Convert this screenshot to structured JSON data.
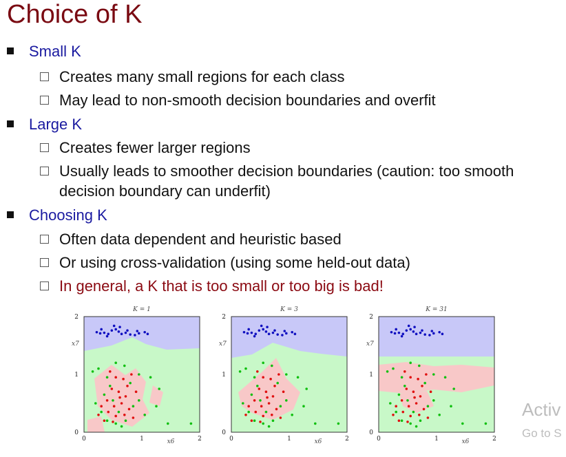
{
  "title": "Choice of K",
  "bullets": [
    {
      "label": "Small K",
      "items": [
        "Creates many small regions for each class",
        "May lead to non-smooth decision boundaries and overfit"
      ]
    },
    {
      "label": "Large K",
      "items": [
        "Creates fewer larger regions",
        "Usually leads to smoother decision boundaries (caution: too smooth",
        "decision boundary can underfit)"
      ]
    },
    {
      "label": "Choosing K",
      "items": [
        "Often data dependent and heuristic based",
        "Or using cross-validation (using some held-out data)",
        "In general, a K that is too small or too big is bad!"
      ]
    }
  ],
  "colors": {
    "title": "#7a0a12",
    "bullet": "#1a1aa0",
    "emphasis": "#8b0a12",
    "class_blue": "#c8c8f8",
    "class_green": "#c8f8c8",
    "class_red": "#f8c8c8"
  },
  "plots": [
    {
      "k_label": "K = 1"
    },
    {
      "k_label": "K = 3"
    },
    {
      "k_label": "K = 31"
    }
  ],
  "axis": {
    "xlabel": "x6",
    "ylabel": "x7",
    "ticks": [
      "0",
      "1",
      "2"
    ]
  },
  "watermark": {
    "line1": "Activ",
    "line2": "Go to S"
  },
  "chart_data": {
    "type": "scatter",
    "xlim": [
      0,
      2
    ],
    "ylim": [
      0,
      2
    ],
    "xlabel": "x6",
    "ylabel": "x7",
    "series": [
      {
        "name": "",
        "color": "#1010c0",
        "points": [
          [
            0.22,
            1.73
          ],
          [
            0.28,
            1.71
          ],
          [
            0.35,
            1.72
          ],
          [
            0.42,
            1.7
          ],
          [
            0.48,
            1.76
          ],
          [
            0.55,
            1.78
          ],
          [
            0.6,
            1.74
          ],
          [
            0.65,
            1.7
          ],
          [
            0.72,
            1.72
          ],
          [
            0.8,
            1.69
          ],
          [
            0.88,
            1.68
          ],
          [
            0.95,
            1.71
          ],
          [
            1.05,
            1.73
          ],
          [
            0.3,
            1.78
          ],
          [
            0.52,
            1.84
          ],
          [
            0.62,
            1.82
          ],
          [
            0.75,
            1.76
          ],
          [
            0.4,
            1.66
          ],
          [
            0.92,
            1.75
          ],
          [
            1.1,
            1.7
          ]
        ]
      },
      {
        "name": "",
        "color": "#10c010",
        "points": [
          [
            0.15,
            1.05
          ],
          [
            0.25,
            1.1
          ],
          [
            0.4,
            0.95
          ],
          [
            0.55,
            1.2
          ],
          [
            0.7,
            1.15
          ],
          [
            0.8,
            0.85
          ],
          [
            0.95,
            1.0
          ],
          [
            1.15,
            0.95
          ],
          [
            1.3,
            0.75
          ],
          [
            0.35,
            0.65
          ],
          [
            0.5,
            0.55
          ],
          [
            0.6,
            0.35
          ],
          [
            0.72,
            0.2
          ],
          [
            0.85,
            0.45
          ],
          [
            0.4,
            0.2
          ],
          [
            0.3,
            0.35
          ],
          [
            0.65,
            0.1
          ],
          [
            1.05,
            0.3
          ],
          [
            1.25,
            0.45
          ],
          [
            1.85,
            0.15
          ],
          [
            1.45,
            0.15
          ],
          [
            0.45,
            0.8
          ],
          [
            0.95,
            0.55
          ],
          [
            0.55,
            0.15
          ],
          [
            0.2,
            0.5
          ]
        ]
      },
      {
        "name": "",
        "color": "#e01010",
        "points": [
          [
            0.55,
            0.95
          ],
          [
            0.68,
            0.92
          ],
          [
            0.82,
            1.0
          ],
          [
            0.48,
            0.75
          ],
          [
            0.6,
            0.7
          ],
          [
            0.72,
            0.62
          ],
          [
            0.4,
            0.55
          ],
          [
            0.52,
            0.45
          ],
          [
            0.65,
            0.5
          ],
          [
            0.78,
            0.4
          ],
          [
            0.3,
            0.45
          ],
          [
            0.42,
            0.35
          ],
          [
            0.55,
            0.28
          ],
          [
            0.7,
            0.3
          ],
          [
            0.85,
            0.25
          ],
          [
            0.35,
            0.2
          ],
          [
            0.5,
            0.18
          ],
          [
            0.62,
            0.6
          ],
          [
            0.75,
            0.8
          ],
          [
            0.45,
            1.05
          ],
          [
            0.9,
            0.7
          ],
          [
            0.25,
            0.3
          ]
        ]
      }
    ]
  }
}
